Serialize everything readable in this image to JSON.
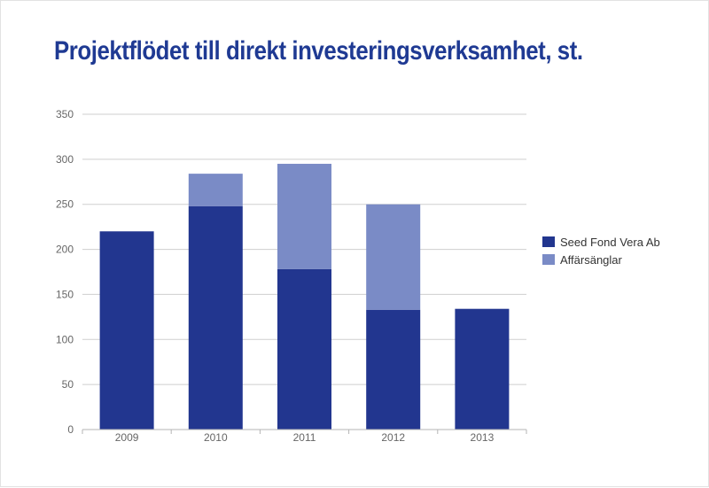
{
  "chart_data": {
    "type": "bar",
    "stacked": true,
    "title": "Projektflödet till direkt investeringsverksamhet, st.",
    "categories": [
      "2009",
      "2010",
      "2011",
      "2012",
      "2013"
    ],
    "series": [
      {
        "name": "Seed Fond Vera Ab",
        "color": "#22368f",
        "values": [
          220,
          248,
          178,
          133,
          134
        ]
      },
      {
        "name": "Affärsänglar",
        "color": "#7a8bc6",
        "values": [
          0,
          36,
          117,
          117,
          0
        ]
      }
    ],
    "ylim": [
      0,
      350
    ],
    "yticks": [
      0,
      50,
      100,
      150,
      200,
      250,
      300,
      350
    ],
    "grid": true,
    "legend": "right"
  }
}
